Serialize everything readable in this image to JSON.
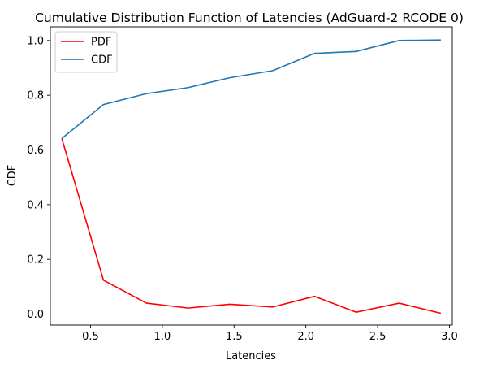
{
  "chart_data": {
    "type": "line",
    "title": "Cumulative Distribution Function of Latencies (AdGuard-2 RCODE 0)",
    "xlabel": "Latencies",
    "ylabel": "CDF",
    "xlim": [
      0.22,
      3.02
    ],
    "ylim": [
      -0.04,
      1.05
    ],
    "xticks": [
      0.5,
      1.0,
      1.5,
      2.0,
      2.5,
      3.0
    ],
    "xtick_labels": [
      "0.5",
      "1.0",
      "1.5",
      "2.0",
      "2.5",
      "3.0"
    ],
    "yticks": [
      0.0,
      0.2,
      0.4,
      0.6,
      0.8,
      1.0
    ],
    "ytick_labels": [
      "0.0",
      "0.2",
      "0.4",
      "0.6",
      "0.8",
      "1.0"
    ],
    "grid": false,
    "legend_position": "top-left",
    "x": [
      0.3,
      0.59,
      0.89,
      1.18,
      1.47,
      1.77,
      2.06,
      2.35,
      2.65,
      2.94
    ],
    "series": [
      {
        "name": "PDF",
        "color": "#ff0000",
        "values": [
          0.642,
          0.124,
          0.04,
          0.022,
          0.036,
          0.026,
          0.065,
          0.007,
          0.04,
          0.003
        ]
      },
      {
        "name": "CDF",
        "color": "#1f77b4",
        "values": [
          0.642,
          0.766,
          0.806,
          0.828,
          0.864,
          0.89,
          0.953,
          0.96,
          1.0,
          1.002
        ]
      }
    ]
  }
}
